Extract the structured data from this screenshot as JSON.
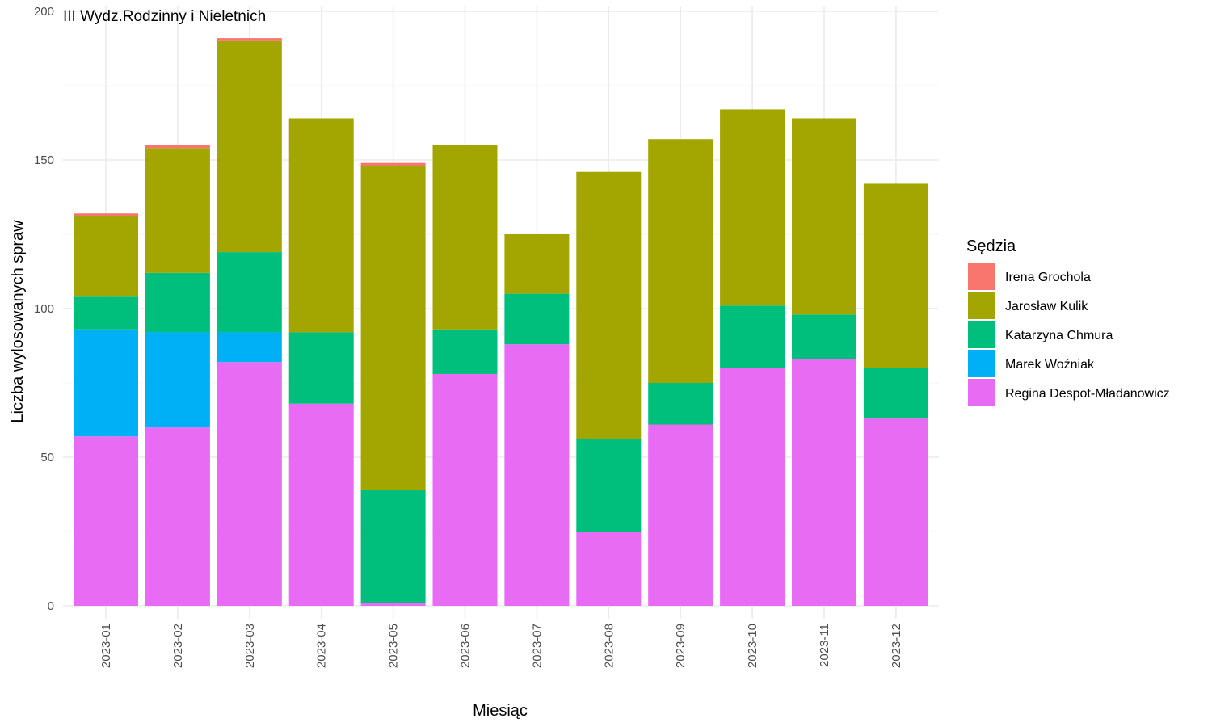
{
  "chart_data": {
    "type": "bar",
    "stacked": true,
    "title": "III Wydz.Rodzinny i Nieletnich",
    "xlabel": "Miesiąc",
    "ylabel": "Liczba wylosowanych spraw",
    "ylim": [
      0,
      200
    ],
    "yticks": [
      0,
      50,
      100,
      150,
      200
    ],
    "grid": true,
    "legend_title": "Sędzia",
    "legend_position": "right",
    "categories": [
      "2023-01",
      "2023-02",
      "2023-03",
      "2023-04",
      "2023-05",
      "2023-06",
      "2023-07",
      "2023-08",
      "2023-09",
      "2023-10",
      "2023-11",
      "2023-12"
    ],
    "series": [
      {
        "name": "Regina Despot-Mładanowicz",
        "color": "#E76BF3",
        "values": [
          57,
          60,
          82,
          68,
          1,
          78,
          88,
          25,
          61,
          80,
          83,
          63
        ]
      },
      {
        "name": "Marek Woźniak",
        "color": "#00B0F6",
        "values": [
          36,
          32,
          10,
          0,
          0,
          0,
          0,
          0,
          0,
          0,
          0,
          0
        ]
      },
      {
        "name": "Katarzyna Chmura",
        "color": "#00BF7D",
        "values": [
          11,
          20,
          27,
          24,
          38,
          15,
          17,
          31,
          14,
          21,
          15,
          17
        ]
      },
      {
        "name": "Jarosław Kulik",
        "color": "#A3A500",
        "values": [
          27,
          42,
          71,
          72,
          109,
          62,
          20,
          90,
          82,
          66,
          66,
          62
        ]
      },
      {
        "name": "Irena Grochola",
        "color": "#F8766D",
        "values": [
          1,
          1,
          1,
          0,
          1,
          0,
          0,
          0,
          0,
          0,
          0,
          0
        ]
      }
    ],
    "legend_order": [
      "Irena Grochola",
      "Jarosław Kulik",
      "Katarzyna Chmura",
      "Marek Woźniak",
      "Regina Despot-Mładanowicz"
    ]
  }
}
